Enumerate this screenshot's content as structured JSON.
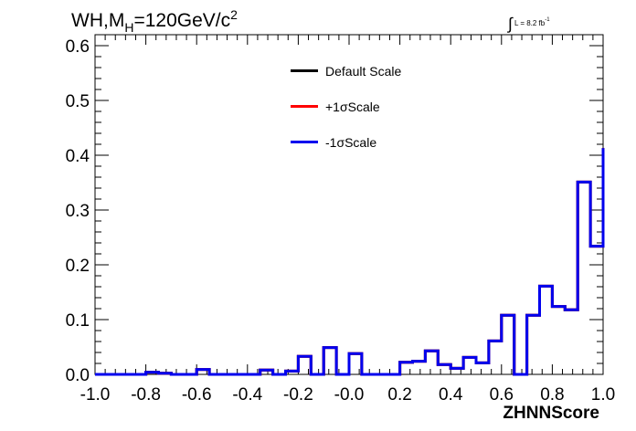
{
  "header": {
    "title_prefix": "WH,M",
    "title_sub": "H",
    "title_suffix": "=120GeV/c",
    "title_sup": "2",
    "lumi_prefix": "L = 8.2 fb",
    "lumi_sup": "-1"
  },
  "legend": [
    {
      "label": "Default Scale",
      "color": "#000000"
    },
    {
      "label": "+1σScale",
      "color": "#ff0000"
    },
    {
      "label": "-1σScale",
      "color": "#0000ee"
    }
  ],
  "chart_data": {
    "type": "step-histogram",
    "xlabel": "ZHNNScore",
    "ylabel": "",
    "xlim": [
      -1.0,
      1.0
    ],
    "ylim": [
      0,
      0.62
    ],
    "xticks": [
      -1.0,
      -0.8,
      -0.6,
      -0.4,
      -0.2,
      0.0,
      0.2,
      0.4,
      0.6,
      0.8,
      1.0
    ],
    "xtick_labels": [
      "-1.0",
      "-0.8",
      "-0.6",
      "-0.4",
      "-0.2",
      "-0.0",
      "0.2",
      "0.4",
      "0.6",
      "0.8",
      "1.0"
    ],
    "yticks": [
      0.0,
      0.1,
      0.2,
      0.3,
      0.4,
      0.5,
      0.6
    ],
    "ytick_labels": [
      "0.0",
      "0.1",
      "0.2",
      "0.3",
      "0.4",
      "0.5",
      "0.6"
    ],
    "bin_edges": [
      -1.0,
      -0.95,
      -0.9,
      -0.85,
      -0.8,
      -0.75,
      -0.7,
      -0.65,
      -0.6,
      -0.55,
      -0.5,
      -0.45,
      -0.4,
      -0.35,
      -0.3,
      -0.25,
      -0.2,
      -0.15,
      -0.1,
      -0.05,
      0.0,
      0.05,
      0.1,
      0.15,
      0.2,
      0.25,
      0.3,
      0.35,
      0.4,
      0.45,
      0.5,
      0.55,
      0.6,
      0.65,
      0.7,
      0.75,
      0.8,
      0.85,
      0.9,
      0.95,
      1.0
    ],
    "series": [
      {
        "name": "Default Scale",
        "color": "#000000",
        "values": [
          0.0,
          0.0,
          0.0,
          0.0,
          0.004,
          0.002,
          0.0,
          0.0,
          0.009,
          0.0,
          0.0,
          0.0,
          0.0,
          0.008,
          0.0,
          0.006,
          0.033,
          0.0,
          0.049,
          0.0,
          0.038,
          0.0,
          0.0,
          0.0,
          0.022,
          0.024,
          0.043,
          0.018,
          0.011,
          0.031,
          0.021,
          0.061,
          0.108,
          0.0,
          0.108,
          0.161,
          0.124,
          0.118,
          0.351,
          0.234,
          0.413
        ]
      },
      {
        "name": "+1σScale",
        "color": "#ff0000",
        "values": [
          0.0,
          0.0,
          0.0,
          0.0,
          0.004,
          0.002,
          0.0,
          0.0,
          0.009,
          0.0,
          0.0,
          0.0,
          0.0,
          0.008,
          0.0,
          0.006,
          0.033,
          0.0,
          0.049,
          0.0,
          0.038,
          0.0,
          0.0,
          0.0,
          0.022,
          0.024,
          0.043,
          0.018,
          0.011,
          0.031,
          0.021,
          0.061,
          0.108,
          0.0,
          0.108,
          0.161,
          0.124,
          0.118,
          0.351,
          0.234,
          0.413
        ]
      },
      {
        "name": "-1σScale",
        "color": "#0000ee",
        "values": [
          0.0,
          0.0,
          0.0,
          0.0,
          0.004,
          0.002,
          0.0,
          0.0,
          0.009,
          0.0,
          0.0,
          0.0,
          0.0,
          0.008,
          0.0,
          0.006,
          0.033,
          0.0,
          0.049,
          0.0,
          0.038,
          0.0,
          0.0,
          0.0,
          0.022,
          0.024,
          0.043,
          0.018,
          0.011,
          0.031,
          0.021,
          0.061,
          0.108,
          0.0,
          0.108,
          0.161,
          0.124,
          0.118,
          0.351,
          0.234,
          0.413
        ]
      }
    ]
  }
}
